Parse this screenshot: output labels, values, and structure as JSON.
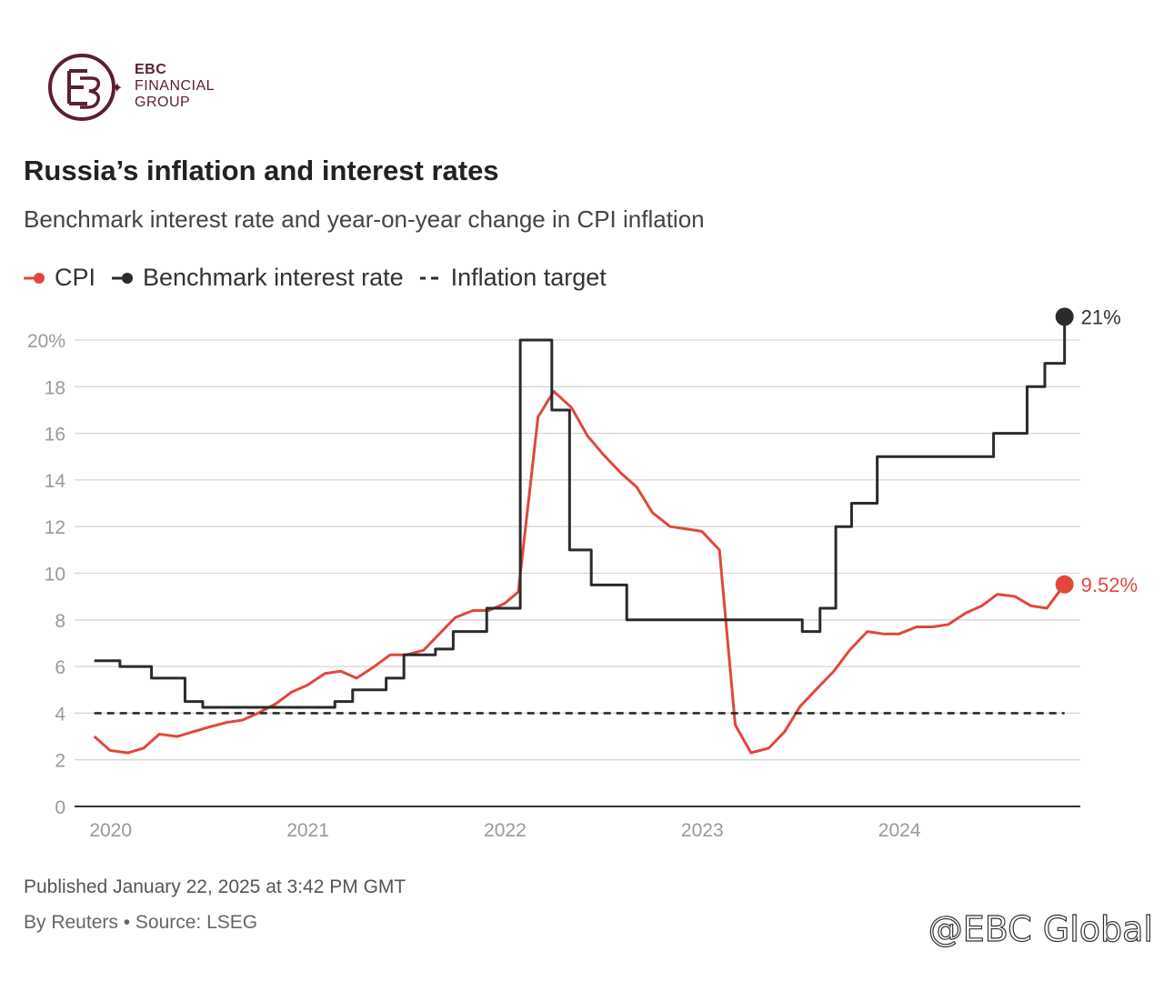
{
  "brand": {
    "line1": "EBC",
    "line2": "FINANCIAL",
    "line3": "GROUP",
    "color": "#5a1f33"
  },
  "header": {
    "title": "Russia’s inflation and interest rates",
    "subtitle": "Benchmark interest rate and year-on-year change in CPI inflation"
  },
  "legend": {
    "cpi": "CPI",
    "rate": "Benchmark interest rate",
    "target": "Inflation target"
  },
  "footer": {
    "published": "Published January 22, 2025 at 3:42 PM GMT",
    "source": "By Reuters • Source: LSEG"
  },
  "watermark": "@EBC Global",
  "chart_data": {
    "type": "line",
    "xlim": [
      2019.9,
      2025.0
    ],
    "ylim": [
      0,
      20
    ],
    "yticks": [
      0,
      2,
      4,
      6,
      8,
      10,
      12,
      14,
      16,
      18,
      20
    ],
    "ytick_labels": [
      "0",
      "2",
      "4",
      "6",
      "8",
      "10",
      "12",
      "14",
      "16",
      "18",
      "20%"
    ],
    "xticks": [
      2020,
      2021,
      2022,
      2023,
      2024
    ],
    "xtick_labels": [
      "2020",
      "2021",
      "2022",
      "2023",
      "2024"
    ],
    "grid": true,
    "series": [
      {
        "name": "CPI",
        "color": "#e0483b",
        "style": "line",
        "end_label": "9.52%",
        "x": [
          2020.0,
          2020.08,
          2020.17,
          2020.25,
          2020.33,
          2020.42,
          2020.5,
          2020.58,
          2020.67,
          2020.75,
          2020.83,
          2020.92,
          2021.0,
          2021.08,
          2021.17,
          2021.25,
          2021.33,
          2021.42,
          2021.5,
          2021.58,
          2021.67,
          2021.75,
          2021.83,
          2021.92,
          2022.0,
          2022.08,
          2022.15,
          2022.25,
          2022.33,
          2022.42,
          2022.5,
          2022.58,
          2022.67,
          2022.75,
          2022.83,
          2022.92,
          2023.0,
          2023.08,
          2023.17,
          2023.25,
          2023.33,
          2023.42,
          2023.5,
          2023.58,
          2023.67,
          2023.75,
          2023.83,
          2023.92,
          2024.0,
          2024.08,
          2024.17,
          2024.25,
          2024.33,
          2024.42,
          2024.5,
          2024.58,
          2024.67,
          2024.75,
          2024.83,
          2024.92
        ],
        "y": [
          3.0,
          2.4,
          2.3,
          2.5,
          3.1,
          3.0,
          3.2,
          3.4,
          3.6,
          3.7,
          4.0,
          4.4,
          4.9,
          5.2,
          5.7,
          5.8,
          5.5,
          6.0,
          6.5,
          6.5,
          6.7,
          7.4,
          8.1,
          8.4,
          8.4,
          8.7,
          9.2,
          16.7,
          17.8,
          17.1,
          15.9,
          15.1,
          14.3,
          13.7,
          12.6,
          12.0,
          11.9,
          11.8,
          11.0,
          3.5,
          2.3,
          2.5,
          3.2,
          4.3,
          5.1,
          5.8,
          6.7,
          7.5,
          7.4,
          7.4,
          7.7,
          7.7,
          7.8,
          8.3,
          8.6,
          9.1,
          9.0,
          8.6,
          8.5,
          9.52
        ]
      },
      {
        "name": "Benchmark interest rate",
        "color": "#2b2b2b",
        "style": "step",
        "end_label": "21%",
        "x": [
          2020.0,
          2020.13,
          2020.29,
          2020.46,
          2020.55,
          2021.22,
          2021.31,
          2021.48,
          2021.57,
          2021.73,
          2021.82,
          2021.99,
          2022.16,
          2022.32,
          2022.41,
          2022.52,
          2022.7,
          2023.59,
          2023.68,
          2023.76,
          2023.84,
          2023.97,
          2024.56,
          2024.73,
          2024.82,
          2024.92
        ],
        "y": [
          6.25,
          6.0,
          5.5,
          4.5,
          4.25,
          4.5,
          5.0,
          5.5,
          6.5,
          6.75,
          7.5,
          8.5,
          20.0,
          17.0,
          11.0,
          9.5,
          8.0,
          7.5,
          8.5,
          12.0,
          13.0,
          15.0,
          16.0,
          18.0,
          19.0,
          21.0
        ]
      },
      {
        "name": "Inflation target",
        "color": "#2b2b2b",
        "style": "dashed",
        "x": [
          2020.0,
          2024.92
        ],
        "y": [
          4,
          4
        ]
      }
    ]
  }
}
